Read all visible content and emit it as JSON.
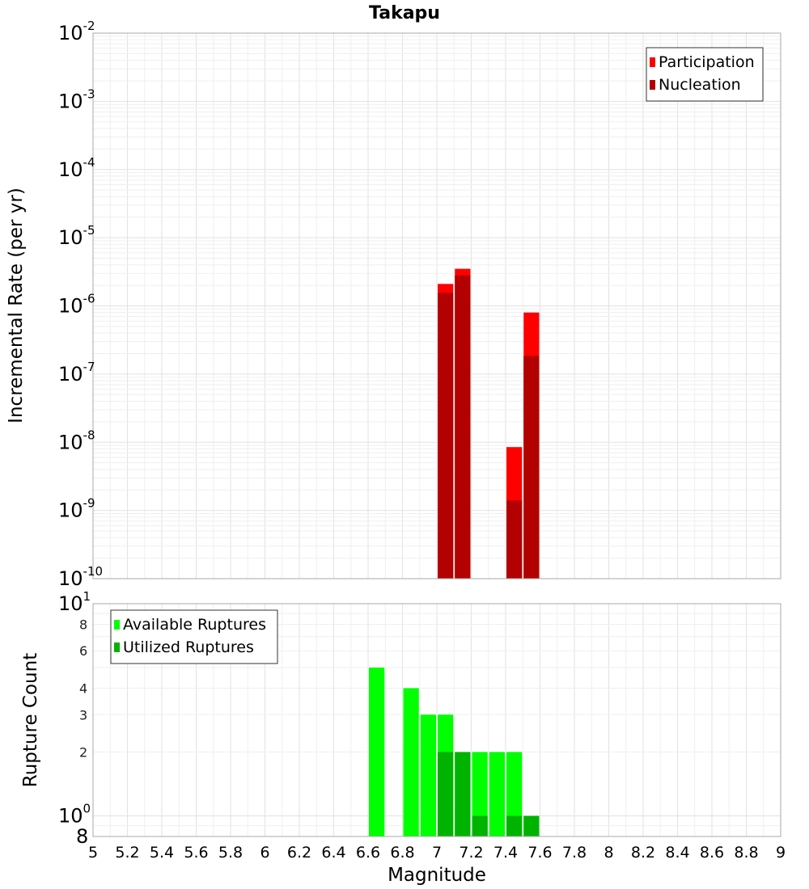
{
  "chart_data": [
    {
      "type": "bar",
      "title": "Takapu",
      "xlabel": "",
      "ylabel": "Incremental Rate (per yr)",
      "yscale": "log",
      "ylim": [
        1e-10,
        0.01
      ],
      "xlim": [
        5,
        9
      ],
      "grid": true,
      "legend_position": "top-right",
      "y_tick_labels": [
        {
          "base": "10",
          "exp": "-2"
        },
        {
          "base": "10",
          "exp": "-3"
        },
        {
          "base": "10",
          "exp": "-4"
        },
        {
          "base": "10",
          "exp": "-5"
        },
        {
          "base": "10",
          "exp": "-6"
        },
        {
          "base": "10",
          "exp": "-7"
        },
        {
          "base": "10",
          "exp": "-8"
        },
        {
          "base": "10",
          "exp": "-9"
        },
        {
          "base": "10",
          "exp": "-10"
        }
      ],
      "series": [
        {
          "name": "Participation",
          "color": "#ff0000",
          "points": [
            {
              "x": 7.05,
              "y": 2.1e-06
            },
            {
              "x": 7.15,
              "y": 3.5e-06
            },
            {
              "x": 7.45,
              "y": 8.5e-09
            },
            {
              "x": 7.55,
              "y": 8e-07
            }
          ]
        },
        {
          "name": "Nucleation",
          "color": "#b30000",
          "points": [
            {
              "x": 7.05,
              "y": 1.55e-06
            },
            {
              "x": 7.15,
              "y": 2.8e-06
            },
            {
              "x": 7.45,
              "y": 1.4e-09
            },
            {
              "x": 7.55,
              "y": 1.85e-07
            }
          ]
        }
      ]
    },
    {
      "type": "bar",
      "title": "",
      "xlabel": "Magnitude",
      "ylabel": "Rupture Count",
      "yscale": "log",
      "ylim": [
        0.8,
        10
      ],
      "xlim": [
        5,
        9
      ],
      "grid": true,
      "legend_position": "top-left",
      "x_tick_labels": [
        "5",
        "5.2",
        "5.4",
        "5.6",
        "5.8",
        "6",
        "6.2",
        "6.4",
        "6.6",
        "6.8",
        "7",
        "7.2",
        "7.4",
        "7.6",
        "7.8",
        "8",
        "8.2",
        "8.4",
        "8.6",
        "8.8",
        "9"
      ],
      "y_tick_labels": [
        {
          "value": 10,
          "base": "10",
          "exp": "1"
        },
        {
          "value": 8,
          "label": "8"
        },
        {
          "value": 6,
          "label": "6"
        },
        {
          "value": 4,
          "label": "4"
        },
        {
          "value": 3,
          "label": "3"
        },
        {
          "value": 2,
          "label": "2"
        },
        {
          "value": 1,
          "base": "10",
          "exp": "0"
        },
        {
          "value": 0.8,
          "label": "8"
        }
      ],
      "series": [
        {
          "name": "Available Ruptures",
          "color": "#00ff00",
          "points": [
            {
              "x": 6.65,
              "y": 5
            },
            {
              "x": 6.85,
              "y": 4
            },
            {
              "x": 6.95,
              "y": 3
            },
            {
              "x": 7.05,
              "y": 3
            },
            {
              "x": 7.15,
              "y": 2
            },
            {
              "x": 7.25,
              "y": 2
            },
            {
              "x": 7.35,
              "y": 2
            },
            {
              "x": 7.45,
              "y": 2
            },
            {
              "x": 7.55,
              "y": 1
            }
          ]
        },
        {
          "name": "Utilized Ruptures",
          "color": "#00b300",
          "points": [
            {
              "x": 7.05,
              "y": 2
            },
            {
              "x": 7.15,
              "y": 2
            },
            {
              "x": 7.25,
              "y": 1
            },
            {
              "x": 7.45,
              "y": 1
            },
            {
              "x": 7.55,
              "y": 1
            }
          ]
        }
      ]
    }
  ]
}
